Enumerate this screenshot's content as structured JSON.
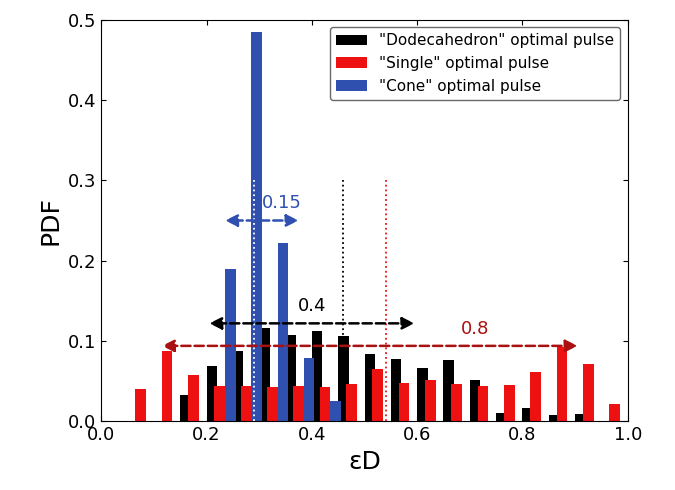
{
  "chart_data": {
    "type": "bar",
    "x_label": "εD",
    "y_label": "PDF",
    "xlim": [
      0,
      1.0
    ],
    "xticks": [
      {
        "value": 0,
        "label": "0.0"
      },
      {
        "value": 0.2,
        "label": "0.2"
      },
      {
        "value": 0.4,
        "label": "0.4"
      },
      {
        "value": 0.6,
        "label": "0.6"
      },
      {
        "value": 0.8,
        "label": "0.8"
      },
      {
        "value": 1.0,
        "label": "1.0"
      }
    ],
    "ylim": [
      0,
      0.5
    ],
    "yticks": [
      {
        "value": 0,
        "label": "0.0"
      },
      0.1,
      0.2,
      0.3,
      0.4,
      0.5
    ],
    "legend": "upper right",
    "series": [
      {
        "name": "\"Dodecahedron\" optimal pulse",
        "color": "#000000",
        "x": [
          0.16,
          0.21,
          0.26,
          0.31,
          0.36,
          0.41,
          0.46,
          0.51,
          0.56,
          0.61,
          0.66,
          0.71,
          0.76,
          0.81,
          0.86,
          0.91
        ],
        "values": [
          0.033,
          0.069,
          0.087,
          0.116,
          0.107,
          0.112,
          0.106,
          0.084,
          0.078,
          0.066,
          0.076,
          0.051,
          0.01,
          0.017,
          0.008,
          0.009
        ]
      },
      {
        "name": "\"Single\" optimal pulse",
        "color": "#ee1111",
        "x": [
          0.075,
          0.125,
          0.175,
          0.225,
          0.275,
          0.325,
          0.375,
          0.425,
          0.475,
          0.525,
          0.575,
          0.625,
          0.675,
          0.725,
          0.775,
          0.825,
          0.875,
          0.925,
          0.975
        ],
        "values": [
          0.04,
          0.088,
          0.058,
          0.044,
          0.044,
          0.043,
          0.044,
          0.043,
          0.047,
          0.065,
          0.048,
          0.052,
          0.047,
          0.044,
          0.045,
          0.062,
          0.092,
          0.071,
          0.022
        ]
      },
      {
        "name": "\"Cone\" optimal pulse",
        "color": "#3050b0",
        "x": [
          0.245,
          0.295,
          0.345,
          0.395,
          0.445
        ],
        "values": [
          0.19,
          0.485,
          0.222,
          0.079,
          0.026
        ]
      }
    ],
    "mean_lines": [
      {
        "x": 0.29,
        "y_end": 0.3,
        "color": "#ffffff"
      },
      {
        "x": 0.46,
        "y_end": 0.3,
        "color": "#000000"
      },
      {
        "x": 0.54,
        "y_end": 0.3,
        "color": "#ee1111"
      }
    ],
    "annotations": [
      {
        "text": "0.15",
        "x_start": 0.23,
        "x_end": 0.38,
        "y": 0.25,
        "color": "#3050b0"
      },
      {
        "text": "0.4",
        "x_start": 0.2,
        "x_end": 0.6,
        "y": 0.122,
        "color": "#000000"
      },
      {
        "text": "0.8",
        "x_start": 0.11,
        "x_end": 0.91,
        "y": 0.094,
        "color": "#aa1111"
      }
    ]
  }
}
